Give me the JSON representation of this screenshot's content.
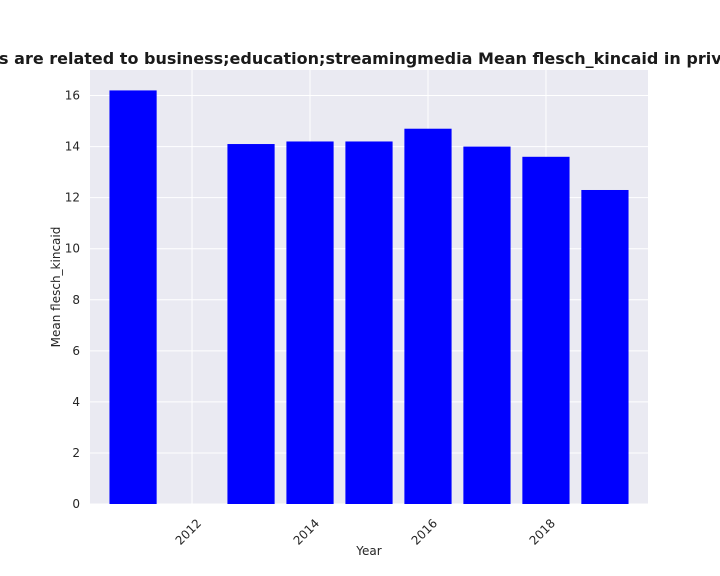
{
  "chart_data": {
    "type": "bar",
    "title": "Categories are related to business;education;streamingmedia Mean flesch_kincaid in privacy policies",
    "xlabel": "Year",
    "ylabel": "Mean flesch_kincaid",
    "x": [
      2011,
      2013,
      2014,
      2015,
      2016,
      2017,
      2018,
      2019
    ],
    "values": [
      16.2,
      14.1,
      14.2,
      14.2,
      14.7,
      14.0,
      13.6,
      12.3
    ],
    "xticks": [
      "2012",
      "2014",
      "2016",
      "2018"
    ],
    "yticks": [
      "0",
      "2",
      "4",
      "6",
      "8",
      "10",
      "12",
      "14",
      "16"
    ],
    "xlim": [
      2010.27,
      2019.73
    ],
    "ylim": [
      0,
      17
    ],
    "grid": true,
    "bar_color": "#0000ff",
    "plot_background": "#eaeaf2",
    "grid_color": "#ffffff"
  }
}
